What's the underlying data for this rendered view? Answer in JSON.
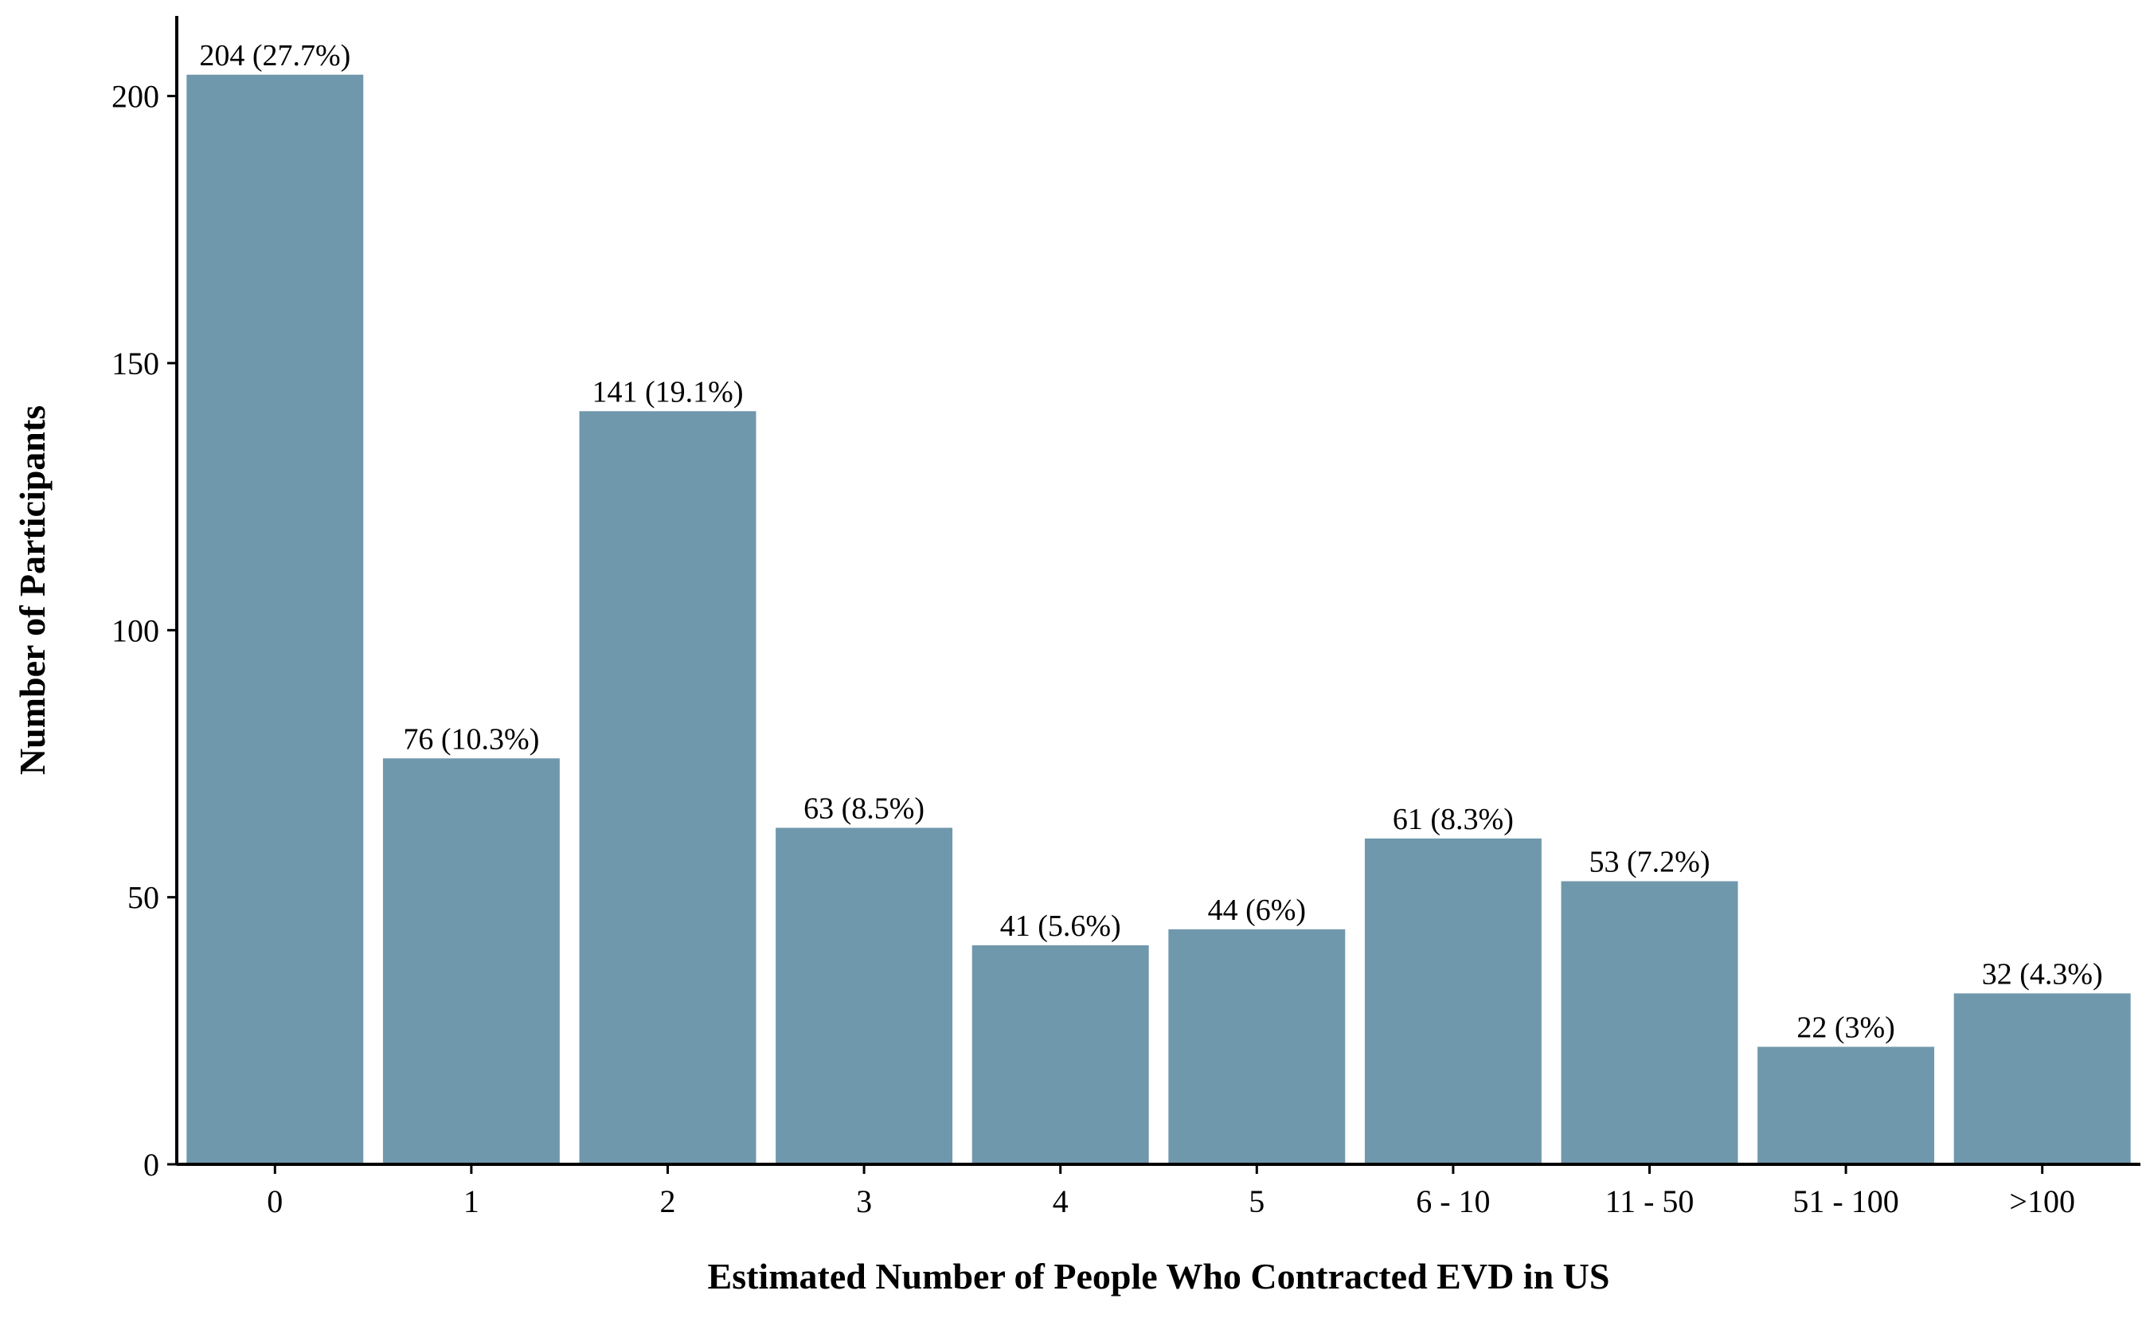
{
  "chart_data": {
    "type": "bar",
    "title": "",
    "xlabel": "Estimated Number of People Who Contracted EVD in US",
    "ylabel": "Number of Participants",
    "categories": [
      "0",
      "1",
      "2",
      "3",
      "4",
      "5",
      "6 - 10",
      "11 - 50",
      "51 - 100",
      ">100"
    ],
    "values": [
      204,
      76,
      141,
      63,
      41,
      44,
      61,
      53,
      22,
      32
    ],
    "data_labels": [
      "204 (27.7%)",
      "76 (10.3%)",
      "141 (19.1%)",
      "63 (8.5%)",
      "41 (5.6%)",
      "44 (6%)",
      "61 (8.3%)",
      "53 (7.2%)",
      "22 (3%)",
      "32 (4.3%)"
    ],
    "yticks": [
      0,
      50,
      100,
      150,
      200
    ],
    "ylim": [
      0,
      215
    ],
    "grid": false,
    "legend": "none",
    "bar_color": "#7098ac",
    "axis_color": "#000000"
  }
}
